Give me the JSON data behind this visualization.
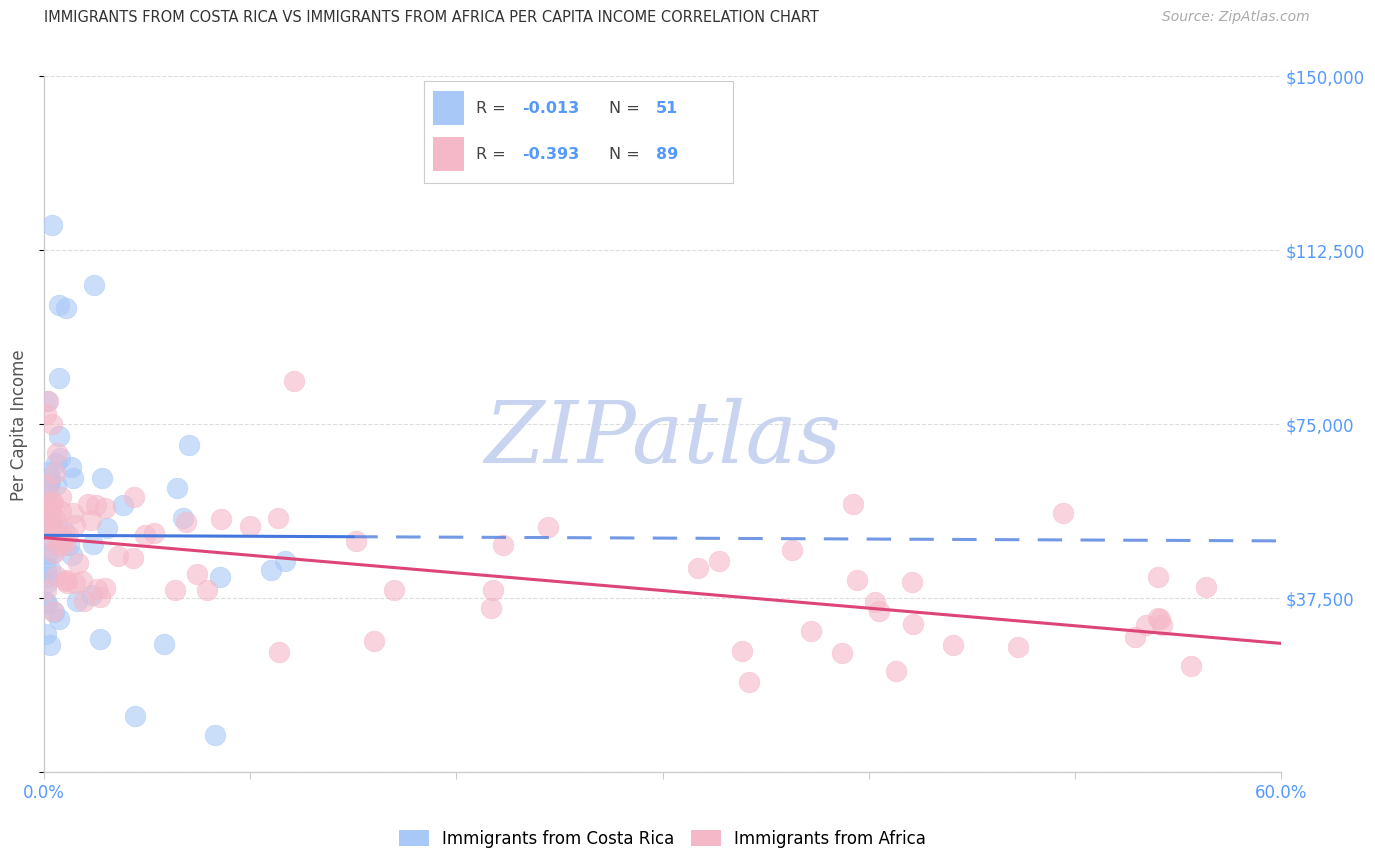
{
  "title": "IMMIGRANTS FROM COSTA RICA VS IMMIGRANTS FROM AFRICA PER CAPITA INCOME CORRELATION CHART",
  "source": "Source: ZipAtlas.com",
  "ylabel": "Per Capita Income",
  "legend_label1": "Immigrants from Costa Rica",
  "legend_label2": "Immigrants from Africa",
  "R1": -0.013,
  "N1": 51,
  "R2": -0.393,
  "N2": 89,
  "color1": "#a8c8f8",
  "color2": "#f5b8c8",
  "trend_color1": "#4477dd",
  "trend_color2": "#dd4477",
  "xlim": [
    0.0,
    0.6
  ],
  "ylim": [
    0,
    150000
  ],
  "ytick_vals": [
    0,
    37500,
    75000,
    112500,
    150000
  ],
  "ytick_labels": [
    "",
    "$37,500",
    "$75,000",
    "$112,500",
    "$150,000"
  ],
  "xtick_vals": [
    0.0,
    0.1,
    0.2,
    0.3,
    0.4,
    0.5,
    0.6
  ],
  "watermark": "ZIPatlas",
  "watermark_color": "#c8d4f0",
  "background_color": "#ffffff",
  "grid_color": "#dddddd",
  "title_color": "#333333",
  "source_color": "#aaaaaa",
  "ylabel_color": "#555555",
  "tick_color": "#5599ff",
  "axis_color": "#cccccc"
}
